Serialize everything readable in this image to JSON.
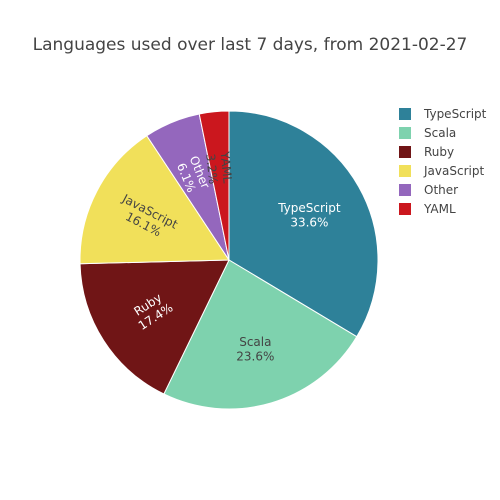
{
  "chart_data": {
    "type": "pie",
    "title": "Languages used over last 7 days, from 2021-02-27",
    "slices": [
      {
        "label": "TypeScript",
        "value": 33.6,
        "percent_text": "33.6%",
        "color": "#2e8199",
        "text_color": "#ffffff"
      },
      {
        "label": "Scala",
        "value": 23.6,
        "percent_text": "23.6%",
        "color": "#7ed2ae",
        "text_color": "#444444"
      },
      {
        "label": "Ruby",
        "value": 17.4,
        "percent_text": "17.4%",
        "color": "#701516",
        "text_color": "#ffffff"
      },
      {
        "label": "JavaScript",
        "value": 16.1,
        "percent_text": "16.1%",
        "color": "#f1e05a",
        "text_color": "#444444"
      },
      {
        "label": "Other",
        "value": 6.1,
        "percent_text": "6.1%",
        "color": "#9467bd",
        "text_color": "#ffffff"
      },
      {
        "label": "YAML",
        "value": 3.2,
        "percent_text": "3.2%",
        "color": "#cb171e",
        "text_color": "#444444"
      }
    ],
    "legend_position": "top-right",
    "direction": "clockwise",
    "start": "top"
  }
}
